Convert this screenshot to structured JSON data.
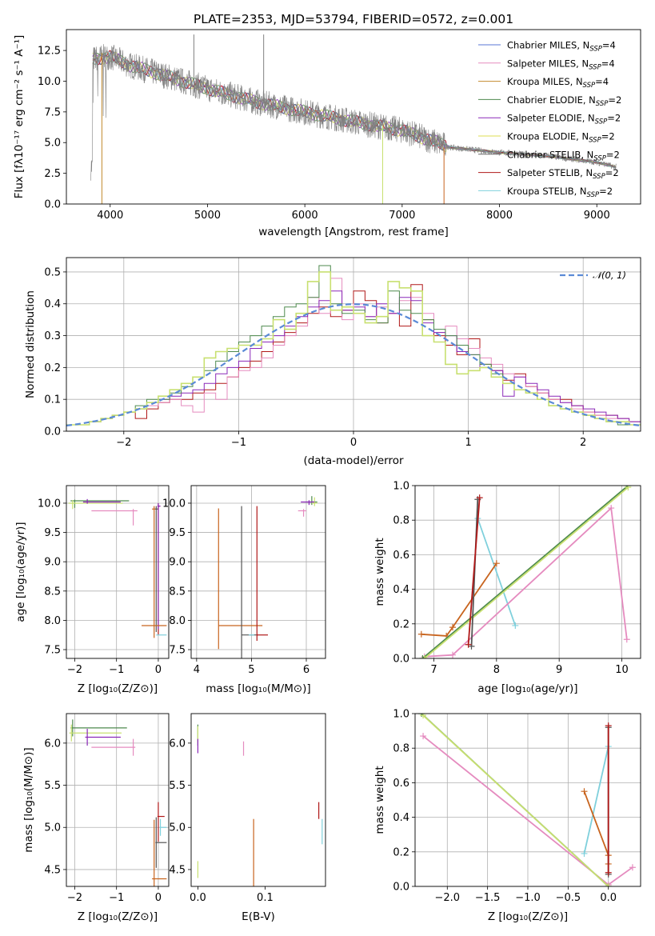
{
  "chart_data": [
    {
      "id": "spectrum",
      "type": "line",
      "title": "PLATE=2353, MJD=53794, FIBERID=0572, z=0.001",
      "xlabel": "wavelength [Angstrom, rest frame]",
      "ylabel": "Flux [fλ10⁻¹⁷ erg cm⁻² s⁻¹ A⁻¹]",
      "xlim": [
        3550,
        9450
      ],
      "ylim": [
        0,
        14.2
      ],
      "xticks": [
        "4000",
        "5000",
        "6000",
        "7000",
        "8000",
        "9000"
      ],
      "yticks": [
        "0.0",
        "2.5",
        "5.0",
        "7.5",
        "10.0",
        "12.5"
      ],
      "grid": false,
      "legend_position": "top-right",
      "data_color": "#808080",
      "data_trend": {
        "x": [
          3820,
          3900,
          4000,
          4200,
          4500,
          5000,
          5500,
          6000,
          6500,
          7000,
          7500,
          8000,
          8500,
          9000,
          9200
        ],
        "y": [
          11.8,
          11.9,
          12.0,
          11.3,
          10.6,
          9.4,
          8.3,
          7.5,
          6.7,
          6.0,
          4.6,
          4.2,
          3.9,
          3.4,
          3.0
        ]
      },
      "legend": [
        {
          "name": "Chabrier MILES, N",
          "sub": "SSP",
          "suffix": "=4",
          "color": "#5a76d6"
        },
        {
          "name": "Salpeter MILES, N",
          "sub": "SSP",
          "suffix": "=4",
          "color": "#e58bbf"
        },
        {
          "name": "Kroupa MILES, N",
          "sub": "SSP",
          "suffix": "=4",
          "color": "#c28a2e"
        },
        {
          "name": "Chabrier ELODIE, N",
          "sub": "SSP",
          "suffix": "=2",
          "color": "#4e8a4e"
        },
        {
          "name": "Salpeter ELODIE, N",
          "sub": "SSP",
          "suffix": "=2",
          "color": "#8a28b8"
        },
        {
          "name": "Kroupa ELODIE, N",
          "sub": "SSP",
          "suffix": "=2",
          "color": "#dede50"
        },
        {
          "name": "Chabrier STELIB, N",
          "sub": "SSP",
          "suffix": "=2",
          "color": "#6a6a6a"
        },
        {
          "name": "Salpeter STELIB, N",
          "sub": "SSP",
          "suffix": "=2",
          "color": "#b01818"
        },
        {
          "name": "Kroupa STELIB, N",
          "sub": "SSP",
          "suffix": "=2",
          "color": "#7fd0dc"
        }
      ]
    },
    {
      "id": "residuals",
      "type": "line",
      "xlabel": "(data-model)/error",
      "ylabel": "Normed distribution",
      "xlim": [
        -2.5,
        2.5
      ],
      "ylim": [
        0,
        0.545
      ],
      "xticks": [
        "−2",
        "−1",
        "0",
        "1",
        "2"
      ],
      "yticks": [
        "0.0",
        "0.1",
        "0.2",
        "0.3",
        "0.4",
        "0.5"
      ],
      "grid": true,
      "legend_position": "top-right",
      "legend": [
        "𝒩(0, 1)"
      ],
      "gauss_color": "#5a8ad6",
      "bins_edges_range": [
        -2.5,
        2.5
      ],
      "bin_width": 0.1,
      "histograms": [
        {
          "color": "#b01818",
          "values": [
            0.02,
            0.02,
            0.03,
            0.04,
            0.05,
            0.06,
            0.04,
            0.07,
            0.09,
            0.1,
            0.1,
            0.12,
            0.13,
            0.15,
            0.17,
            0.2,
            0.22,
            0.25,
            0.28,
            0.31,
            0.34,
            0.37,
            0.39,
            0.36,
            0.38,
            0.44,
            0.41,
            0.34,
            0.37,
            0.33,
            0.46,
            0.35,
            0.3,
            0.27,
            0.24,
            0.29,
            0.21,
            0.19,
            0.16,
            0.18,
            0.14,
            0.12,
            0.1,
            0.1,
            0.08,
            0.06,
            0.05,
            0.05,
            0.04,
            0.03
          ]
        },
        {
          "color": "#e58bbf",
          "values": [
            0.02,
            0.02,
            0.03,
            0.04,
            0.05,
            0.06,
            0.07,
            0.08,
            0.09,
            0.1,
            0.08,
            0.06,
            0.12,
            0.1,
            0.17,
            0.19,
            0.2,
            0.23,
            0.27,
            0.3,
            0.33,
            0.42,
            0.37,
            0.48,
            0.35,
            0.4,
            0.36,
            0.39,
            0.37,
            0.41,
            0.42,
            0.37,
            0.31,
            0.33,
            0.29,
            0.26,
            0.23,
            0.21,
            0.18,
            0.17,
            0.14,
            0.12,
            0.1,
            0.09,
            0.07,
            0.06,
            0.05,
            0.04,
            0.04,
            0.03
          ]
        },
        {
          "color": "#8a28b8",
          "values": [
            0.02,
            0.02,
            0.03,
            0.04,
            0.05,
            0.06,
            0.07,
            0.09,
            0.1,
            0.11,
            0.12,
            0.13,
            0.15,
            0.18,
            0.2,
            0.22,
            0.26,
            0.28,
            0.3,
            0.33,
            0.36,
            0.39,
            0.41,
            0.44,
            0.38,
            0.39,
            0.36,
            0.4,
            0.37,
            0.42,
            0.41,
            0.34,
            0.31,
            0.3,
            0.25,
            0.24,
            0.2,
            0.19,
            0.11,
            0.17,
            0.15,
            0.13,
            0.11,
            0.09,
            0.08,
            0.07,
            0.06,
            0.05,
            0.04,
            0.03
          ]
        },
        {
          "color": "#4e8a4e",
          "values": [
            0.02,
            0.02,
            0.03,
            0.04,
            0.05,
            0.06,
            0.08,
            0.1,
            0.1,
            0.12,
            0.14,
            0.17,
            0.19,
            0.22,
            0.25,
            0.28,
            0.3,
            0.33,
            0.36,
            0.39,
            0.4,
            0.42,
            0.52,
            0.4,
            0.37,
            0.38,
            0.35,
            0.34,
            0.44,
            0.38,
            0.37,
            0.35,
            0.32,
            0.3,
            0.27,
            0.24,
            0.21,
            0.18,
            0.15,
            0.13,
            0.12,
            0.1,
            0.08,
            0.07,
            0.06,
            0.05,
            0.04,
            0.03,
            0.02,
            0.02
          ]
        },
        {
          "color": "#c8e070",
          "values": [
            0.02,
            0.02,
            0.03,
            0.04,
            0.05,
            0.06,
            0.07,
            0.09,
            0.11,
            0.13,
            0.15,
            0.17,
            0.23,
            0.25,
            0.26,
            0.27,
            0.27,
            0.29,
            0.35,
            0.32,
            0.37,
            0.47,
            0.5,
            0.38,
            0.39,
            0.37,
            0.34,
            0.36,
            0.47,
            0.45,
            0.44,
            0.3,
            0.28,
            0.21,
            0.18,
            0.19,
            0.2,
            0.17,
            0.15,
            0.13,
            0.12,
            0.1,
            0.08,
            0.07,
            0.06,
            0.05,
            0.04,
            0.03,
            0.03,
            0.02
          ]
        }
      ]
    },
    {
      "id": "z-age",
      "type": "scatter",
      "xlabel": "Z [log₁₀(Z/Z⊙)]",
      "ylabel": "age  [log₁₀(age/yr)]",
      "xlim": [
        -2.2,
        0.25
      ],
      "ylim": [
        7.35,
        10.3
      ],
      "xticks": [
        "−2",
        "−1",
        "0"
      ],
      "yticks": [
        "7.5",
        "8.0",
        "8.5",
        "9.0",
        "9.5",
        "10.0"
      ],
      "grid": true
    },
    {
      "id": "mass-age",
      "type": "scatter",
      "xlabel": "mass [log₁₀(M/M⊙)]",
      "xlim": [
        3.9,
        6.35
      ],
      "ylim": [
        7.35,
        10.3
      ],
      "xticks": [
        "4",
        "5",
        "6"
      ],
      "yticks": [
        "7.5",
        "8.0",
        "8.5",
        "9.0",
        "9.5",
        "10.0"
      ],
      "grid": true
    },
    {
      "id": "age-weight",
      "type": "line",
      "xlabel": "age  [log₁₀(age/yr)]",
      "ylabel": "mass weight",
      "xlim": [
        6.7,
        10.3
      ],
      "ylim": [
        0,
        1.0
      ],
      "xticks": [
        "7",
        "8",
        "9",
        "10"
      ],
      "yticks": [
        "0.0",
        "0.2",
        "0.4",
        "0.6",
        "0.8",
        "1.0"
      ],
      "grid": true,
      "series": [
        {
          "color": "#7fd0dc",
          "x": [
            7.7,
            8.3
          ],
          "y": [
            0.81,
            0.19
          ]
        },
        {
          "color": "#e58bbf",
          "x": [
            6.85,
            7.3,
            9.83,
            10.08
          ],
          "y": [
            0.01,
            0.02,
            0.87,
            0.11
          ]
        },
        {
          "color": "#c8641e",
          "x": [
            6.8,
            7.2,
            7.3,
            8.0
          ],
          "y": [
            0.14,
            0.13,
            0.18,
            0.55
          ]
        },
        {
          "color": "#4e8a4e",
          "x": [
            6.82,
            10.1
          ],
          "y": [
            0.0,
            1.0
          ]
        },
        {
          "color": "#c8e070",
          "x": [
            6.85,
            10.1
          ],
          "y": [
            0.0,
            0.99
          ]
        },
        {
          "color": "#555555",
          "x": [
            7.6,
            7.7
          ],
          "y": [
            0.07,
            0.92
          ]
        },
        {
          "color": "#b01818",
          "x": [
            7.55,
            7.73
          ],
          "y": [
            0.08,
            0.93
          ]
        }
      ]
    },
    {
      "id": "z-mass",
      "type": "scatter",
      "xlabel": "Z [log₁₀(Z/Z⊙)]",
      "ylabel": "mass [log₁₀(M/M⊙)]",
      "xlim": [
        -2.2,
        0.25
      ],
      "ylim": [
        4.3,
        6.35
      ],
      "xticks": [
        "−2",
        "−1",
        "0"
      ],
      "yticks": [
        "4.5",
        "5.0",
        "5.5",
        "6.0"
      ],
      "grid": true
    },
    {
      "id": "ebv-mass",
      "type": "scatter",
      "xlabel": "E(B-V)",
      "xlim": [
        -0.01,
        0.19
      ],
      "ylim": [
        4.3,
        6.35
      ],
      "xticks": [
        "0.0",
        "0.1"
      ],
      "yticks": [
        "4.5",
        "5.0",
        "5.5",
        "6.0"
      ],
      "grid": false
    },
    {
      "id": "z-weight",
      "type": "line",
      "xlabel": "Z [log₁₀(Z/Z⊙)]",
      "ylabel": "mass weight",
      "xlim": [
        -2.4,
        0.4
      ],
      "ylim": [
        0,
        1.0
      ],
      "xticks": [
        "−2.0",
        "−1.5",
        "−1.0",
        "−0.5",
        "0.0"
      ],
      "yticks": [
        "0.0",
        "0.2",
        "0.4",
        "0.6",
        "0.8",
        "1.0"
      ],
      "grid": true,
      "series": [
        {
          "color": "#e58bbf",
          "x": [
            -2.3,
            0.0,
            0.3
          ],
          "y": [
            0.87,
            0.01,
            0.11
          ]
        },
        {
          "color": "#4e8a4e",
          "x": [
            -2.32,
            0.0
          ],
          "y": [
            1.0,
            0.0
          ]
        },
        {
          "color": "#c8e070",
          "x": [
            -2.3,
            0.0
          ],
          "y": [
            0.99,
            0.0
          ]
        },
        {
          "color": "#7fd0dc",
          "x": [
            -0.3,
            0.0
          ],
          "y": [
            0.19,
            0.81
          ]
        },
        {
          "color": "#c8641e",
          "x": [
            -0.3,
            0.0,
            0.0
          ],
          "y": [
            0.55,
            0.18,
            0.13
          ]
        },
        {
          "color": "#555555",
          "x": [
            0.0,
            0.0
          ],
          "y": [
            0.07,
            0.92
          ]
        },
        {
          "color": "#b01818",
          "x": [
            0.0,
            0.0
          ],
          "y": [
            0.08,
            0.93
          ]
        }
      ]
    }
  ]
}
